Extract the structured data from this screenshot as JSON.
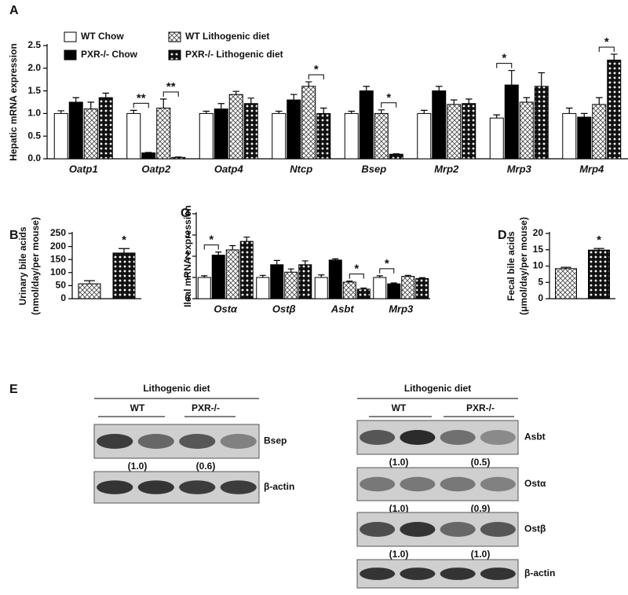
{
  "chart_data": [
    {
      "type": "bar",
      "panel_label": "A",
      "ylabel": "Hepatic mRNA expression",
      "categories": [
        "Oatp1",
        "Oatp2",
        "Oatp4",
        "Ntcp",
        "Bsep",
        "Mrp2",
        "Mrp3",
        "Mrp4"
      ],
      "series": [
        {
          "name": "WT Chow",
          "color": "#ffffff",
          "values": [
            1.0,
            1.0,
            1.0,
            1.0,
            1.0,
            1.0,
            0.9,
            1.0
          ],
          "errors": [
            0.06,
            0.07,
            0.05,
            0.05,
            0.05,
            0.07,
            0.07,
            0.12
          ]
        },
        {
          "name": "PXR-/- Chow",
          "color": "#000000",
          "values": [
            1.25,
            0.13,
            1.1,
            1.3,
            1.5,
            1.5,
            1.63,
            0.92
          ],
          "errors": [
            0.1,
            0.01,
            0.12,
            0.12,
            0.1,
            0.1,
            0.32,
            0.08
          ]
        },
        {
          "name": "WT Lithogenic diet",
          "pattern": "crosshatch",
          "values": [
            1.1,
            1.12,
            1.42,
            1.6,
            1.0,
            1.2,
            1.25,
            1.2
          ],
          "errors": [
            0.15,
            0.2,
            0.07,
            0.1,
            0.08,
            0.1,
            0.1,
            0.15
          ]
        },
        {
          "name": "PXR-/- Lithogenic diet",
          "pattern": "crosshatch-dark",
          "values": [
            1.35,
            0.03,
            1.22,
            1.0,
            0.1,
            1.22,
            1.6,
            2.18
          ],
          "errors": [
            0.1,
            0.01,
            0.12,
            0.12,
            0.01,
            0.1,
            0.3,
            0.13
          ]
        }
      ],
      "ylim": [
        0,
        2.5
      ],
      "yticks": [
        {
          "value": 0,
          "label": "0.0"
        },
        0.5,
        {
          "value": 1,
          "label": "1.0"
        },
        1.5,
        {
          "value": 2,
          "label": "2.0"
        },
        2.5
      ],
      "annotations": [
        "**",
        "**",
        "*",
        "*",
        "*",
        "*"
      ],
      "legend": "top-left"
    },
    {
      "type": "bar",
      "panel_label": "B",
      "ylabel": [
        "Urinary bile acids",
        "(nmol/day/per mouse)"
      ],
      "values": [
        57,
        175
      ],
      "errors": [
        12,
        17
      ],
      "patterns": [
        "crosshatch",
        "crosshatch-dark"
      ],
      "ylim": [
        0,
        250
      ],
      "yticks": [
        0,
        50,
        100,
        150,
        200,
        250
      ],
      "annotations": [
        "*"
      ]
    },
    {
      "type": "bar",
      "panel_label": "C",
      "ylabel": "Ileal mRNA expression",
      "categories": [
        "Ostα",
        "Ostβ",
        "Asbt",
        "Mrp3"
      ],
      "series": [
        {
          "color": "#ffffff",
          "values": [
            1.0,
            1.0,
            1.0,
            1.0
          ],
          "errors": [
            0.08,
            0.1,
            0.12,
            0.08
          ]
        },
        {
          "color": "#000000",
          "values": [
            2.05,
            1.6,
            1.82,
            0.7
          ],
          "errors": [
            0.15,
            0.2,
            0.06,
            0.04
          ]
        },
        {
          "pattern": "crosshatch",
          "values": [
            2.3,
            1.25,
            0.78,
            1.05
          ],
          "errors": [
            0.2,
            0.15,
            0.05,
            0.05
          ]
        },
        {
          "pattern": "crosshatch-dark",
          "values": [
            2.7,
            1.6,
            0.45,
            0.95
          ],
          "errors": [
            0.2,
            0.18,
            0.05,
            0.04
          ]
        }
      ],
      "ylim": [
        0,
        4
      ],
      "yticks": [
        0,
        1,
        2,
        3,
        4
      ],
      "annotations": [
        "*",
        "*",
        "*"
      ]
    },
    {
      "type": "bar",
      "panel_label": "D",
      "ylabel": [
        "Fecal bile acids",
        "(μmol/day/per mouse)"
      ],
      "values": [
        9.2,
        14.9
      ],
      "errors": [
        0.4,
        0.5
      ],
      "patterns": [
        "crosshatch",
        "crosshatch-dark"
      ],
      "ylim": [
        0,
        20
      ],
      "yticks": [
        0,
        5,
        10,
        15,
        20
      ],
      "annotations": [
        "*"
      ]
    }
  ],
  "blots": {
    "panel_label": "E",
    "panels": [
      {
        "header": "Lithogenic diet",
        "groups": [
          "WT",
          "PXR-/-"
        ],
        "bands": [
          {
            "name": "Bsep",
            "ratios": [
              "(1.0)",
              "(0.6)"
            ]
          },
          {
            "name": "β-actin"
          }
        ]
      },
      {
        "header": "Lithogenic diet",
        "groups": [
          "WT",
          "PXR-/-"
        ],
        "bands": [
          {
            "name": "Asbt",
            "ratios": [
              "(1.0)",
              "(0.5)"
            ]
          },
          {
            "name": "Ostα",
            "ratios": [
              "(1.0)",
              "(0.9)"
            ]
          },
          {
            "name": "Ostβ",
            "ratios": [
              "(1.0)",
              "(1.0)"
            ]
          },
          {
            "name": "β-actin"
          }
        ]
      }
    ]
  }
}
